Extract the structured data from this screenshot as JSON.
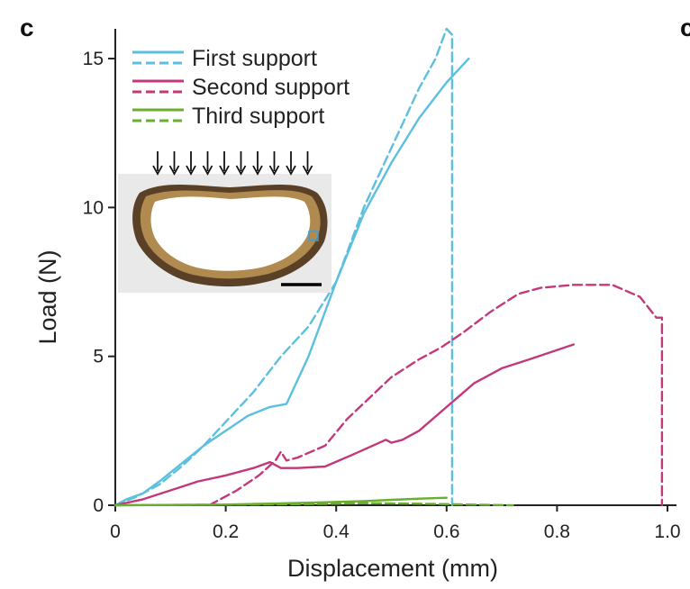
{
  "chart_data": {
    "type": "line",
    "panel_label": "c",
    "next_panel_label": "c",
    "xlabel": "Displacement (mm)",
    "ylabel": "Load (N)",
    "xlim": [
      0,
      1.0
    ],
    "ylim": [
      0,
      16
    ],
    "x_ticks": [
      {
        "value": 0,
        "label": "0"
      },
      {
        "value": 0.2,
        "label": "0.2"
      },
      {
        "value": 0.4,
        "label": "0.4"
      },
      {
        "value": 0.6,
        "label": "0.6"
      },
      {
        "value": 0.8,
        "label": "0.8"
      },
      {
        "value": 1.0,
        "label": "1.0"
      }
    ],
    "y_ticks": [
      {
        "value": 0,
        "label": "0"
      },
      {
        "value": 5,
        "label": "5"
      },
      {
        "value": 10,
        "label": "10"
      },
      {
        "value": 15,
        "label": "15"
      }
    ],
    "legend": [
      {
        "label": "First support",
        "color": "#5BC0DE"
      },
      {
        "label": "Second support",
        "color": "#C2387A"
      },
      {
        "label": "Third support",
        "color": "#6AAE2E"
      }
    ],
    "series": [
      {
        "name": "First support (solid)",
        "color": "#5BC0DE",
        "dash": false,
        "x": [
          0,
          0.02,
          0.05,
          0.08,
          0.12,
          0.16,
          0.2,
          0.24,
          0.28,
          0.31,
          0.35,
          0.4,
          0.45,
          0.5,
          0.55,
          0.6,
          0.64
        ],
        "y": [
          0,
          0.2,
          0.4,
          0.8,
          1.4,
          2.0,
          2.5,
          3.0,
          3.3,
          3.4,
          5.0,
          7.5,
          9.8,
          11.5,
          13.0,
          14.2,
          15.0
        ]
      },
      {
        "name": "First support (dashed)",
        "color": "#5BC0DE",
        "dash": true,
        "x": [
          0,
          0.04,
          0.08,
          0.12,
          0.16,
          0.2,
          0.25,
          0.3,
          0.35,
          0.4,
          0.45,
          0.5,
          0.55,
          0.58,
          0.6,
          0.61,
          0.61,
          0.61
        ],
        "y": [
          0,
          0.3,
          0.7,
          1.3,
          2.0,
          2.8,
          3.8,
          5.0,
          6.0,
          7.5,
          10.0,
          12.0,
          14.0,
          15.0,
          16.0,
          15.8,
          15.5,
          0
        ]
      },
      {
        "name": "Second support (solid)",
        "color": "#C2387A",
        "dash": false,
        "x": [
          0,
          0.05,
          0.1,
          0.15,
          0.2,
          0.25,
          0.28,
          0.3,
          0.33,
          0.38,
          0.43,
          0.49,
          0.5,
          0.52,
          0.55,
          0.6,
          0.65,
          0.7,
          0.75,
          0.83
        ],
        "y": [
          0,
          0.2,
          0.5,
          0.8,
          1.0,
          1.25,
          1.45,
          1.25,
          1.25,
          1.3,
          1.7,
          2.2,
          2.1,
          2.2,
          2.5,
          3.3,
          4.1,
          4.6,
          4.9,
          5.4
        ]
      },
      {
        "name": "Second support (dashed)",
        "color": "#C2387A",
        "dash": true,
        "x": [
          0.17,
          0.22,
          0.26,
          0.29,
          0.3,
          0.31,
          0.33,
          0.38,
          0.42,
          0.46,
          0.5,
          0.55,
          0.59,
          0.63,
          0.68,
          0.73,
          0.77,
          0.83,
          0.9,
          0.95,
          0.98,
          0.99,
          0.99
        ],
        "y": [
          0,
          0.5,
          1.0,
          1.5,
          1.8,
          1.5,
          1.6,
          2.0,
          2.9,
          3.6,
          4.3,
          4.9,
          5.3,
          5.8,
          6.5,
          7.1,
          7.3,
          7.4,
          7.4,
          7.0,
          6.3,
          6.3,
          0
        ]
      },
      {
        "name": "Third support (solid)",
        "color": "#6AAE2E",
        "dash": false,
        "x": [
          0,
          0.2,
          0.3,
          0.38,
          0.45,
          0.5,
          0.55,
          0.6
        ],
        "y": [
          0,
          0.02,
          0.06,
          0.1,
          0.14,
          0.18,
          0.22,
          0.25
        ]
      },
      {
        "name": "Third support (dashed)",
        "color": "#6AAE2E",
        "dash": true,
        "x": [
          0,
          0.2,
          0.35,
          0.45,
          0.55,
          0.65,
          0.72
        ],
        "y": [
          0,
          0.02,
          0.04,
          0.07,
          0.05,
          0.02,
          0
        ]
      }
    ]
  },
  "inset": {
    "description_icon": "cross-section-photo",
    "load_arrow_count": 10
  }
}
